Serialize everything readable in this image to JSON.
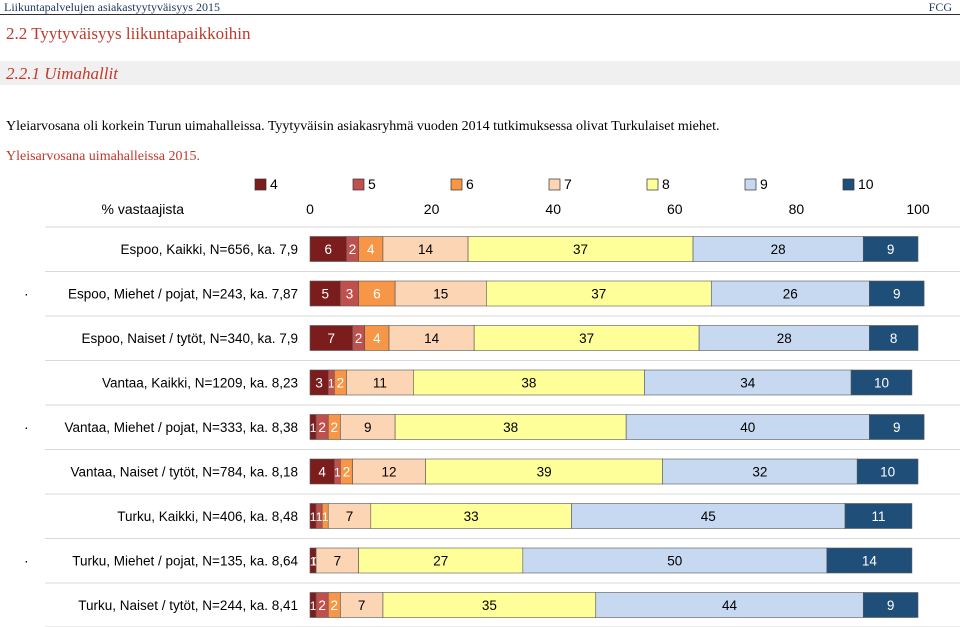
{
  "header": {
    "title": "Liikuntapalvelujen asiakastyytyväisyys 2015",
    "right_label": "FCG"
  },
  "section_title": "2.2 Tyytyväisyys liikuntapaikkoihin",
  "subsection_title": "2.2.1 Uimahallit",
  "paragraph": "Yleiarvosana oli korkein Turun uimahalleissa. Tyytyväisin asiakasryhmä vuoden 2014 tutkimuksessa olivat Turkulaiset miehet.",
  "chart_caption": "Yleisarvosana uimahalleissa 2015.",
  "chart_data": {
    "type": "bar",
    "orientation": "horizontal-stacked-100",
    "x_axis_label": "% vastaajista",
    "xlim": [
      0,
      100
    ],
    "x_ticks": [
      "0",
      "20",
      "40",
      "60",
      "80",
      "100"
    ],
    "legend_position": "top",
    "grid": false,
    "series": [
      {
        "name": "4",
        "color": "#7b1d1d",
        "values": [
          6,
          5,
          7,
          3,
          1,
          4,
          1,
          1,
          1
        ]
      },
      {
        "name": "5",
        "color": "#c0504d",
        "values": [
          2,
          3,
          2,
          1,
          2,
          1,
          1,
          0,
          2
        ]
      },
      {
        "name": "6",
        "color": "#f79646",
        "values": [
          4,
          6,
          4,
          2,
          2,
          2,
          1,
          0,
          2
        ]
      },
      {
        "name": "7",
        "color": "#fcd5b5",
        "values": [
          14,
          15,
          14,
          11,
          9,
          12,
          7,
          7,
          7
        ]
      },
      {
        "name": "8",
        "color": "#ffff99",
        "values": [
          37,
          37,
          37,
          38,
          38,
          39,
          33,
          27,
          35
        ]
      },
      {
        "name": "9",
        "color": "#c6d9f1",
        "values": [
          28,
          26,
          28,
          34,
          40,
          32,
          45,
          50,
          44
        ]
      },
      {
        "name": "10",
        "color": "#1f4e79",
        "values": [
          9,
          9,
          8,
          10,
          9,
          10,
          11,
          14,
          9
        ]
      }
    ],
    "categories": [
      "Espoo, Kaikki, N=656, ka. 7,9",
      "Espoo, Miehet / pojat, N=243, ka. 7,87",
      "Espoo, Naiset / tytöt, N=340, ka. 7,9",
      "Vantaa, Kaikki, N=1209, ka. 8,23",
      "Vantaa, Miehet / pojat, N=333, ka. 8,38",
      "Vantaa, Naiset / tytöt, N=784, ka. 8,18",
      "Turku, Kaikki, N=406, ka. 8,48",
      "Turku, Miehet / pojat, N=135, ka. 8,64",
      "Turku, Naiset / tytöt, N=244, ka. 8,41"
    ],
    "row_markers": [
      "",
      "·",
      "",
      "",
      "·",
      "",
      "",
      "·",
      ""
    ]
  }
}
